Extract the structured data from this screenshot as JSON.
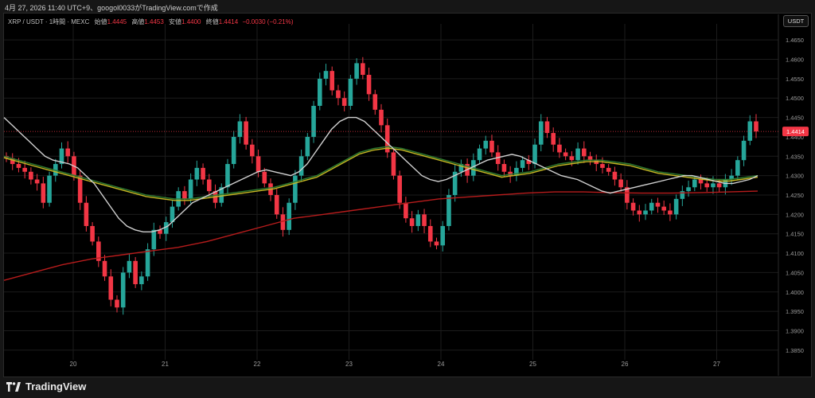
{
  "caption": "4月 27, 2026 11:40 UTC+9、googol0033がTradingView.comで作成",
  "legend": {
    "symbol": "XRP / USDT · 1時間 · MEXC",
    "open_label": "始値",
    "open": "1.4445",
    "high_label": "高値",
    "high": "1.4453",
    "low_label": "安値",
    "low": "1.4400",
    "close_label": "終値",
    "close": "1.4414",
    "change": "−0.0030 (−0.21%)"
  },
  "currency": "USDT",
  "brand": "TradingView",
  "price_label": "1.4414",
  "colors": {
    "up": "#26a69a",
    "down": "#f23645",
    "background": "#000000",
    "grid": "#1c1c1c",
    "ma_fast": "#d0d0d0",
    "ma_mid": "#2e7d32",
    "ma_yellow": "#c6b924",
    "ma_slow": "#b71c1c"
  },
  "chart_data": {
    "type": "candlestick",
    "ylim": [
      1.3825,
      1.4675
    ],
    "y_ticks": [
      "1.4650",
      "1.4600",
      "1.4550",
      "1.4500",
      "1.4450",
      "1.4400",
      "1.4350",
      "1.4300",
      "1.4250",
      "1.4200",
      "1.4150",
      "1.4100",
      "1.4050",
      "1.4000",
      "1.3950",
      "1.3900",
      "1.3850"
    ],
    "x_ticks": [
      "20",
      "21",
      "22",
      "23",
      "24",
      "25",
      "26",
      "27"
    ],
    "last_price": 1.4414,
    "close_series": [
      1.4345,
      1.433,
      1.432,
      1.431,
      1.429,
      1.428,
      1.423,
      1.43,
      1.433,
      1.437,
      1.435,
      1.43,
      1.423,
      1.417,
      1.413,
      1.408,
      1.404,
      1.398,
      1.396,
      1.405,
      1.408,
      1.402,
      1.404,
      1.411,
      1.416,
      1.415,
      1.418,
      1.422,
      1.426,
      1.424,
      1.429,
      1.432,
      1.429,
      1.426,
      1.423,
      1.427,
      1.433,
      1.44,
      1.444,
      1.438,
      1.435,
      1.431,
      1.428,
      1.425,
      1.42,
      1.416,
      1.423,
      1.43,
      1.435,
      1.44,
      1.448,
      1.455,
      1.457,
      1.452,
      1.45,
      1.448,
      1.455,
      1.459,
      1.456,
      1.451,
      1.447,
      1.443,
      1.436,
      1.43,
      1.423,
      1.419,
      1.417,
      1.42,
      1.417,
      1.413,
      1.412,
      1.417,
      1.425,
      1.431,
      1.433,
      1.43,
      1.434,
      1.437,
      1.439,
      1.436,
      1.433,
      1.431,
      1.43,
      1.432,
      1.434,
      1.433,
      1.438,
      1.444,
      1.441,
      1.438,
      1.436,
      1.435,
      1.434,
      1.437,
      1.435,
      1.434,
      1.433,
      1.432,
      1.431,
      1.429,
      1.427,
      1.423,
      1.421,
      1.42,
      1.421,
      1.423,
      1.422,
      1.421,
      1.42,
      1.424,
      1.426,
      1.427,
      1.429,
      1.428,
      1.427,
      1.428,
      1.427,
      1.429,
      1.43,
      1.434,
      1.439,
      1.444,
      1.4414
    ],
    "sma20": [
      1.445,
      1.443,
      1.441,
      1.439,
      1.437,
      1.435,
      1.434,
      1.4335,
      1.433,
      1.432,
      1.43,
      1.428,
      1.425,
      1.422,
      1.419,
      1.417,
      1.416,
      1.4155,
      1.4155,
      1.416,
      1.417,
      1.419,
      1.421,
      1.423,
      1.424,
      1.425,
      1.426,
      1.427,
      1.428,
      1.429,
      1.43,
      1.431,
      1.4315,
      1.431,
      1.4305,
      1.43,
      1.431,
      1.433,
      1.436,
      1.439,
      1.442,
      1.444,
      1.445,
      1.445,
      1.444,
      1.442,
      1.44,
      1.438,
      1.436,
      1.434,
      1.432,
      1.43,
      1.429,
      1.4285,
      1.429,
      1.43,
      1.431,
      1.432,
      1.433,
      1.434,
      1.4345,
      1.435,
      1.4355,
      1.435,
      1.434,
      1.433,
      1.432,
      1.431,
      1.43,
      1.4295,
      1.429,
      1.428,
      1.427,
      1.426,
      1.4255,
      1.426,
      1.4265,
      1.427,
      1.4275,
      1.428,
      1.4285,
      1.429,
      1.4295,
      1.43,
      1.43,
      1.4295,
      1.429,
      1.4285,
      1.428,
      1.428,
      1.4285,
      1.429,
      1.43
    ],
    "sma_yellow": [
      1.435,
      1.434,
      1.433,
      1.432,
      1.431,
      1.43,
      1.429,
      1.428,
      1.427,
      1.426,
      1.425,
      1.4245,
      1.424,
      1.424,
      1.4245,
      1.425,
      1.4255,
      1.426,
      1.4265,
      1.427,
      1.428,
      1.429,
      1.43,
      1.432,
      1.434,
      1.436,
      1.437,
      1.4375,
      1.437,
      1.436,
      1.435,
      1.434,
      1.433,
      1.432,
      1.431,
      1.43,
      1.4305,
      1.431,
      1.432,
      1.433,
      1.4335,
      1.434,
      1.434,
      1.4335,
      1.433,
      1.432,
      1.431,
      1.4305,
      1.43,
      1.4295,
      1.429,
      1.429,
      1.4295,
      1.43
    ],
    "sma_slow": [
      1.403,
      1.405,
      1.407,
      1.4085,
      1.4095,
      1.4105,
      1.4115,
      1.413,
      1.415,
      1.417,
      1.419,
      1.42,
      1.421,
      1.422,
      1.423,
      1.424,
      1.4245,
      1.425,
      1.4255,
      1.4258,
      1.4258,
      1.4256,
      1.4255,
      1.4255,
      1.4256,
      1.4258,
      1.426
    ]
  }
}
